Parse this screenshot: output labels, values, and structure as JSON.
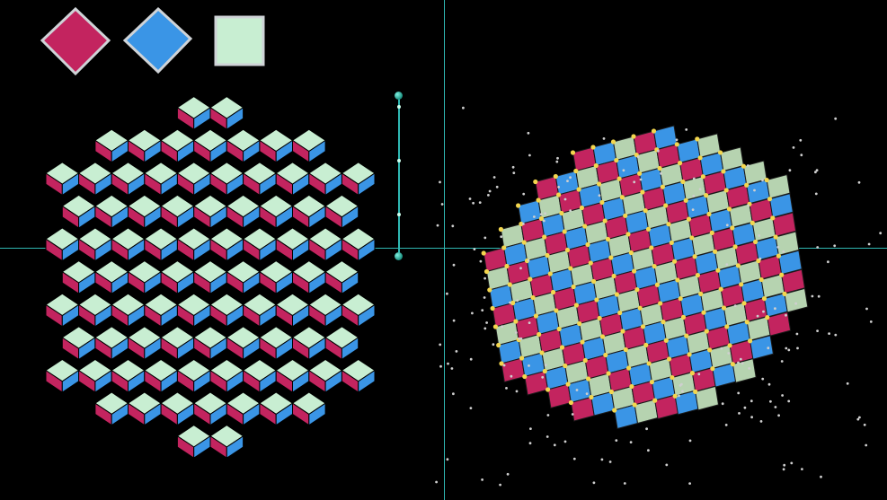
{
  "palette": {
    "magenta": "#c3245f",
    "blue": "#3a95e6",
    "mint": "#c8eed2",
    "edge": "#cfd3d7",
    "ball": "#f3d64e",
    "slider": "#2fb8b3"
  },
  "swatches": [
    {
      "name": "magenta-rhombus-swatch",
      "color": "#c3245f"
    },
    {
      "name": "blue-rhombus-swatch",
      "color": "#3a95e6"
    },
    {
      "name": "mint-square-swatch",
      "color": "#c8eed2"
    }
  ],
  "slider": {
    "value": 0.0
  },
  "views": {
    "left": "flat-rhombus-tiling",
    "right": "3d-rhombus-tiling-with-vertices"
  }
}
